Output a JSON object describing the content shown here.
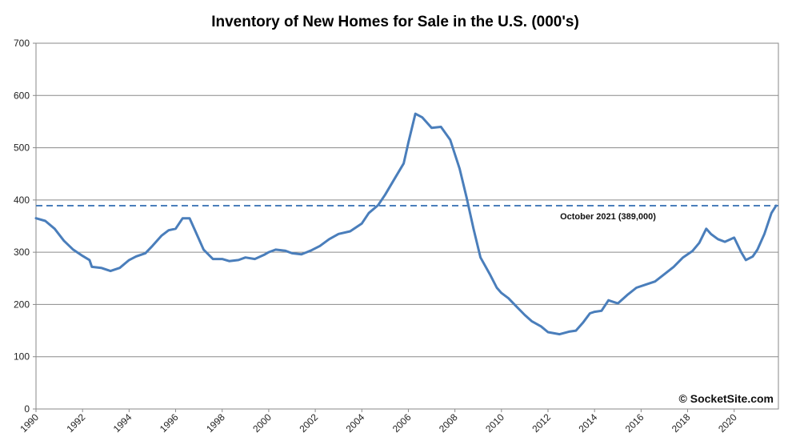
{
  "chart_data": {
    "type": "line",
    "title": "Inventory of New Homes for Sale in the U.S. (000's)",
    "ylim": [
      0,
      700
    ],
    "yticks": [
      0,
      100,
      200,
      300,
      400,
      500,
      600,
      700
    ],
    "xlim": [
      1990,
      2021.9
    ],
    "xticks": [
      1990,
      1992,
      1994,
      1996,
      1998,
      2000,
      2002,
      2004,
      2006,
      2008,
      2010,
      2012,
      2014,
      2016,
      2018,
      2020
    ],
    "grid": true,
    "series": [
      {
        "color": "#4a7ebb",
        "x": [
          1990.0,
          1990.4,
          1990.8,
          1991.2,
          1991.6,
          1992.0,
          1992.3,
          1992.4,
          1992.8,
          1993.2,
          1993.6,
          1994.0,
          1994.3,
          1994.7,
          1995.0,
          1995.4,
          1995.7,
          1996.0,
          1996.3,
          1996.6,
          1996.85,
          1997.2,
          1997.6,
          1998.0,
          1998.3,
          1998.7,
          1999.0,
          1999.4,
          1999.8,
          2000.0,
          2000.3,
          2000.7,
          2001.0,
          2001.4,
          2001.8,
          2002.2,
          2002.6,
          2003.0,
          2003.5,
          2004.0,
          2004.3,
          2004.7,
          2005.0,
          2005.4,
          2005.8,
          2006.0,
          2006.3,
          2006.6,
          2007.0,
          2007.4,
          2007.8,
          2008.2,
          2008.5,
          2008.8,
          2009.1,
          2009.5,
          2009.8,
          2010.0,
          2010.3,
          2010.6,
          2011.0,
          2011.3,
          2011.7,
          2012.0,
          2012.5,
          2012.9,
          2013.2,
          2013.5,
          2013.8,
          2014.0,
          2014.3,
          2014.6,
          2015.0,
          2015.4,
          2015.8,
          2016.2,
          2016.6,
          2017.0,
          2017.4,
          2017.8,
          2018.2,
          2018.5,
          2018.8,
          2019.0,
          2019.3,
          2019.6,
          2020.0,
          2020.3,
          2020.5,
          2020.8,
          2021.0,
          2021.3,
          2021.6,
          2021.8
        ],
        "y": [
          365,
          360,
          345,
          322,
          305,
          293,
          285,
          272,
          270,
          264,
          270,
          285,
          292,
          298,
          312,
          332,
          342,
          345,
          365,
          365,
          340,
          305,
          287,
          287,
          283,
          285,
          290,
          287,
          295,
          300,
          305,
          303,
          298,
          296,
          303,
          312,
          325,
          335,
          340,
          355,
          375,
          390,
          410,
          440,
          470,
          510,
          565,
          558,
          538,
          540,
          515,
          460,
          405,
          345,
          290,
          258,
          232,
          222,
          212,
          198,
          180,
          168,
          158,
          147,
          143,
          148,
          150,
          165,
          183,
          186,
          188,
          208,
          202,
          218,
          232,
          238,
          244,
          258,
          272,
          290,
          302,
          318,
          345,
          335,
          325,
          320,
          328,
          300,
          285,
          292,
          305,
          335,
          375,
          389
        ]
      }
    ],
    "reference_line": {
      "value": 389,
      "label": "October 2021 (389,000)",
      "color": "#4a7ebb",
      "style": "dashed"
    },
    "watermark": "© SocketSite.com"
  }
}
